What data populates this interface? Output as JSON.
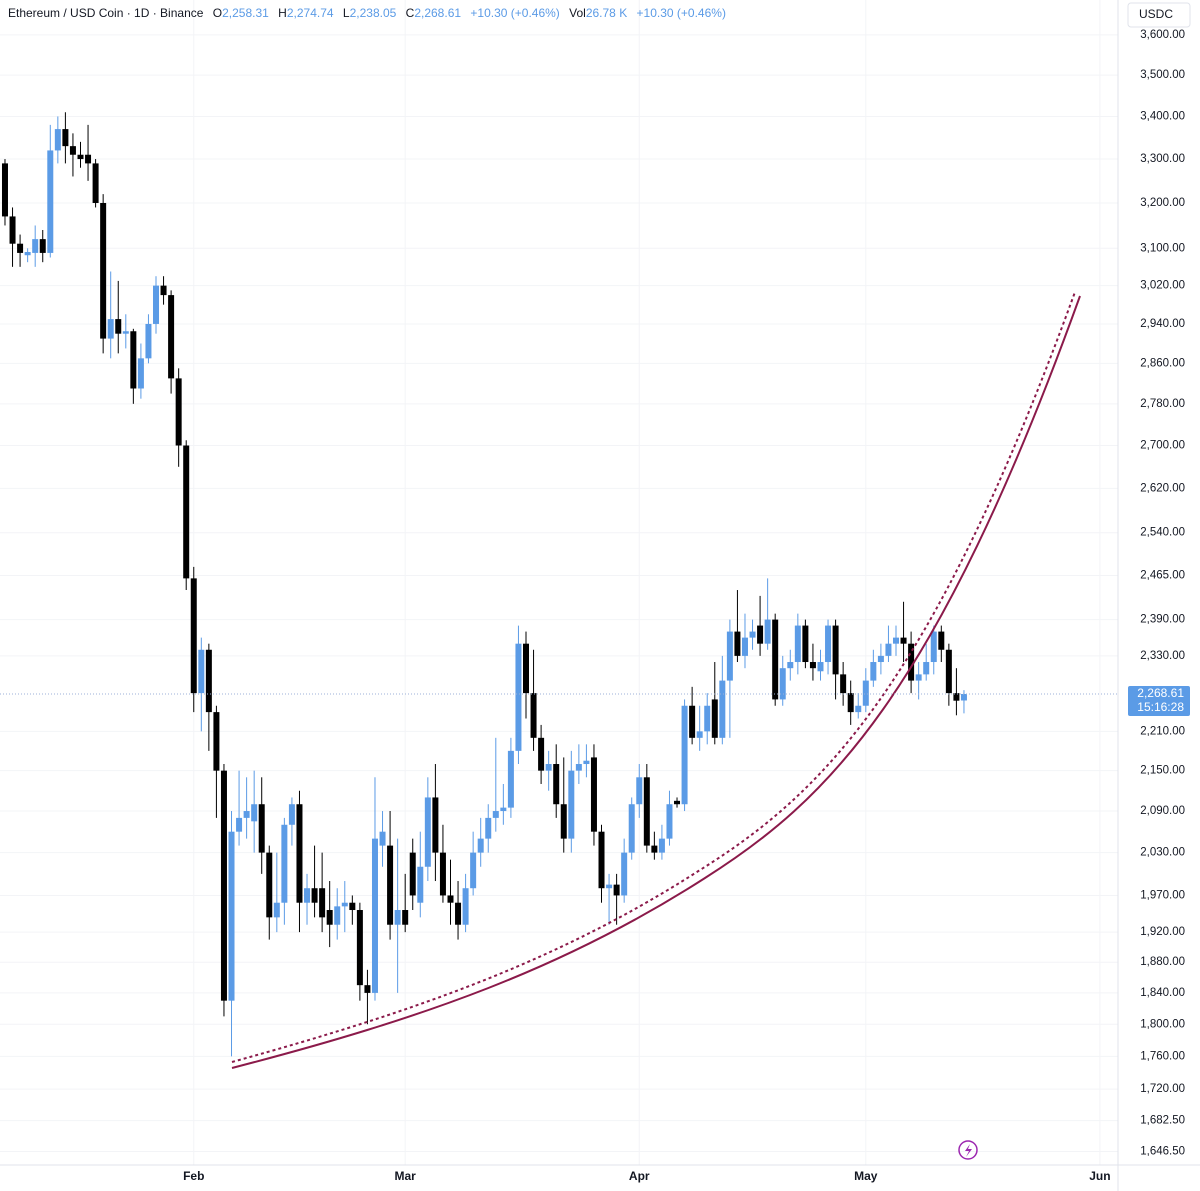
{
  "header": {
    "symbol": "Ethereum / USD Coin · 1D · Binance",
    "fields": [
      {
        "key": "O",
        "value": "2,258.31"
      },
      {
        "key": "H",
        "value": "2,274.74"
      },
      {
        "key": "L",
        "value": "2,238.05"
      },
      {
        "key": "C",
        "value": "2,268.61"
      }
    ],
    "change": "+10.30 (+0.46%)",
    "volume": {
      "key": "Vol",
      "value": "26.78 K"
    },
    "volume_change": "+10.30 (+0.46%)"
  },
  "chart_data": {
    "type": "candlestick",
    "currency": "USDC",
    "log_scale": true,
    "grid": true,
    "up_color": "#5b9be6",
    "down_color": "#000000",
    "curve_color": "#8b1a4a",
    "ylim": [
      1631,
      3689
    ],
    "xlim": [
      -0.66,
      147.4
    ],
    "yticks": [
      {
        "value": 3600,
        "label": "3,600.00"
      },
      {
        "value": 3500,
        "label": "3,500.00"
      },
      {
        "value": 3400,
        "label": "3,400.00"
      },
      {
        "value": 3300,
        "label": "3,300.00"
      },
      {
        "value": 3200,
        "label": "3,200.00"
      },
      {
        "value": 3100,
        "label": "3,100.00"
      },
      {
        "value": 3020,
        "label": "3,020.00"
      },
      {
        "value": 2940,
        "label": "2,940.00"
      },
      {
        "value": 2860,
        "label": "2,860.00"
      },
      {
        "value": 2780,
        "label": "2,780.00"
      },
      {
        "value": 2700,
        "label": "2,700.00"
      },
      {
        "value": 2620,
        "label": "2,620.00"
      },
      {
        "value": 2540,
        "label": "2,540.00"
      },
      {
        "value": 2465,
        "label": "2,465.00"
      },
      {
        "value": 2390,
        "label": "2,390.00"
      },
      {
        "value": 2330,
        "label": "2,330.00"
      },
      {
        "value": 2210,
        "label": "2,210.00"
      },
      {
        "value": 2150,
        "label": "2,150.00"
      },
      {
        "value": 2090,
        "label": "2,090.00"
      },
      {
        "value": 2030,
        "label": "2,030.00"
      },
      {
        "value": 1970,
        "label": "1,970.00"
      },
      {
        "value": 1920,
        "label": "1,920.00"
      },
      {
        "value": 1880,
        "label": "1,880.00"
      },
      {
        "value": 1840,
        "label": "1,840.00"
      },
      {
        "value": 1800,
        "label": "1,800.00"
      },
      {
        "value": 1760,
        "label": "1,760.00"
      },
      {
        "value": 1720,
        "label": "1,720.00"
      },
      {
        "value": 1682.5,
        "label": "1,682.50"
      },
      {
        "value": 1646.5,
        "label": "1,646.50"
      }
    ],
    "xticks": [
      {
        "value": 25,
        "label": "Feb"
      },
      {
        "value": 53,
        "label": "Mar"
      },
      {
        "value": 84,
        "label": "Apr"
      },
      {
        "value": 114,
        "label": "May"
      },
      {
        "value": 145,
        "label": "Jun"
      }
    ],
    "last_price": {
      "value": 2268.61,
      "label": "2,268.61"
    },
    "countdown": "15:16:28",
    "open": [
      3290,
      3170,
      3110,
      3085,
      3090,
      3120,
      3090,
      3320,
      3370,
      3330,
      3310,
      3310,
      3290,
      3200,
      2910,
      2950,
      2920,
      2925,
      2810,
      2870,
      2940,
      3020,
      3000,
      2830,
      2700,
      2460,
      2270,
      2340,
      2240,
      2150,
      1830,
      2060,
      2080,
      2075,
      2100,
      2030,
      1940,
      1960,
      2070,
      2100,
      1960,
      1980,
      1980,
      1950,
      1930,
      1955,
      1960,
      1950,
      1850,
      1840,
      2040,
      2040,
      1930,
      1950,
      2030,
      1960,
      2010,
      2110,
      2030,
      1970,
      1960,
      1930,
      1980,
      2030,
      2050,
      2080,
      2090,
      2095,
      2180,
      2350,
      2270,
      2200,
      2150,
      2160,
      2100,
      2050,
      2150,
      2160,
      2170,
      2060,
      1980,
      1985,
      1970,
      2030,
      2100,
      2140,
      2040,
      2030,
      2050,
      2105,
      2100,
      2250,
      2200,
      2210,
      2260,
      2200,
      2290,
      2370,
      2330,
      2360,
      2380,
      2350,
      2390,
      2260,
      2310,
      2320,
      2380,
      2320,
      2305,
      2320,
      2380,
      2300,
      2270,
      2240,
      2250,
      2290,
      2320,
      2330,
      2350,
      2360,
      2350,
      2290,
      2300,
      2320,
      2370,
      2340,
      2270,
      2258.31
    ],
    "high": [
      3300,
      3190,
      3130,
      3100,
      3150,
      3140,
      3380,
      3400,
      3410,
      3360,
      3340,
      3380,
      3300,
      3220,
      3050,
      3030,
      2960,
      2930,
      2900,
      2960,
      3040,
      3040,
      3010,
      2850,
      2710,
      2480,
      2360,
      2350,
      2250,
      2160,
      2090,
      2150,
      2140,
      2150,
      2140,
      2040,
      2030,
      2080,
      2110,
      2120,
      2000,
      2040,
      2030,
      1990,
      1980,
      1990,
      1970,
      1960,
      1870,
      2140,
      2090,
      2090,
      2050,
      2000,
      2050,
      2060,
      2140,
      2160,
      2070,
      2020,
      1990,
      2000,
      2060,
      2080,
      2100,
      2200,
      2130,
      2200,
      2380,
      2370,
      2340,
      2220,
      2180,
      2190,
      2170,
      2180,
      2190,
      2190,
      2190,
      2070,
      2000,
      2000,
      2050,
      2110,
      2160,
      2160,
      2060,
      2070,
      2120,
      2110,
      2260,
      2280,
      2250,
      2270,
      2320,
      2330,
      2390,
      2440,
      2400,
      2390,
      2430,
      2460,
      2400,
      2330,
      2340,
      2400,
      2390,
      2350,
      2340,
      2390,
      2390,
      2320,
      2290,
      2270,
      2310,
      2340,
      2350,
      2380,
      2380,
      2420,
      2370,
      2320,
      2350,
      2380,
      2380,
      2350,
      2310,
      2274.74
    ],
    "low": [
      3150,
      3060,
      3060,
      3070,
      3060,
      3070,
      3080,
      3290,
      3290,
      3260,
      3280,
      3250,
      3190,
      2880,
      2870,
      2880,
      2890,
      2780,
      2790,
      2860,
      2920,
      2980,
      2800,
      2660,
      2440,
      2240,
      2210,
      2180,
      2080,
      1810,
      1760,
      2040,
      2050,
      2030,
      2000,
      1910,
      1920,
      1930,
      2040,
      1920,
      1930,
      1940,
      1920,
      1900,
      1910,
      1920,
      1930,
      1830,
      1800,
      1830,
      2010,
      1910,
      1840,
      1920,
      1950,
      1940,
      1990,
      1990,
      1960,
      1930,
      1910,
      1920,
      1970,
      2010,
      2030,
      2060,
      2070,
      2080,
      2160,
      2230,
      2180,
      2130,
      2120,
      2080,
      2030,
      2030,
      2130,
      2140,
      2040,
      1960,
      1930,
      1930,
      1960,
      2020,
      2080,
      2030,
      2020,
      2020,
      2040,
      2095,
      2090,
      2190,
      2180,
      2190,
      2190,
      2190,
      2200,
      2320,
      2310,
      2340,
      2330,
      2340,
      2250,
      2250,
      2290,
      2300,
      2310,
      2290,
      2290,
      2300,
      2260,
      2250,
      2220,
      2230,
      2240,
      2280,
      2300,
      2320,
      2330,
      2320,
      2270,
      2260,
      2290,
      2300,
      2320,
      2250,
      2235,
      2238.05
    ],
    "close": [
      3170,
      3110,
      3090,
      3092,
      3120,
      3090,
      3320,
      3370,
      3330,
      3310,
      3300,
      3290,
      3200,
      2910,
      2950,
      2920,
      2925,
      2810,
      2870,
      2940,
      3020,
      3000,
      2830,
      2700,
      2460,
      2270,
      2340,
      2240,
      2150,
      1830,
      2060,
      2080,
      2090,
      2100,
      2030,
      1940,
      1960,
      2070,
      2100,
      1960,
      1980,
      1960,
      1940,
      1930,
      1955,
      1960,
      1950,
      1850,
      1840,
      2050,
      2060,
      1930,
      1950,
      1930,
      1970,
      2010,
      2110,
      2030,
      1970,
      1960,
      1930,
      1980,
      2030,
      2050,
      2080,
      2090,
      2095,
      2180,
      2350,
      2270,
      2200,
      2150,
      2160,
      2100,
      2050,
      2150,
      2160,
      2165,
      2060,
      1980,
      1985,
      1970,
      2030,
      2100,
      2140,
      2040,
      2030,
      2050,
      2100,
      2100,
      2250,
      2200,
      2210,
      2250,
      2200,
      2290,
      2370,
      2330,
      2360,
      2370,
      2350,
      2390,
      2260,
      2310,
      2320,
      2380,
      2320,
      2310,
      2320,
      2380,
      2300,
      2270,
      2240,
      2250,
      2290,
      2320,
      2330,
      2350,
      2360,
      2350,
      2290,
      2300,
      2320,
      2370,
      2340,
      2270,
      2258,
      2268.61
    ]
  }
}
